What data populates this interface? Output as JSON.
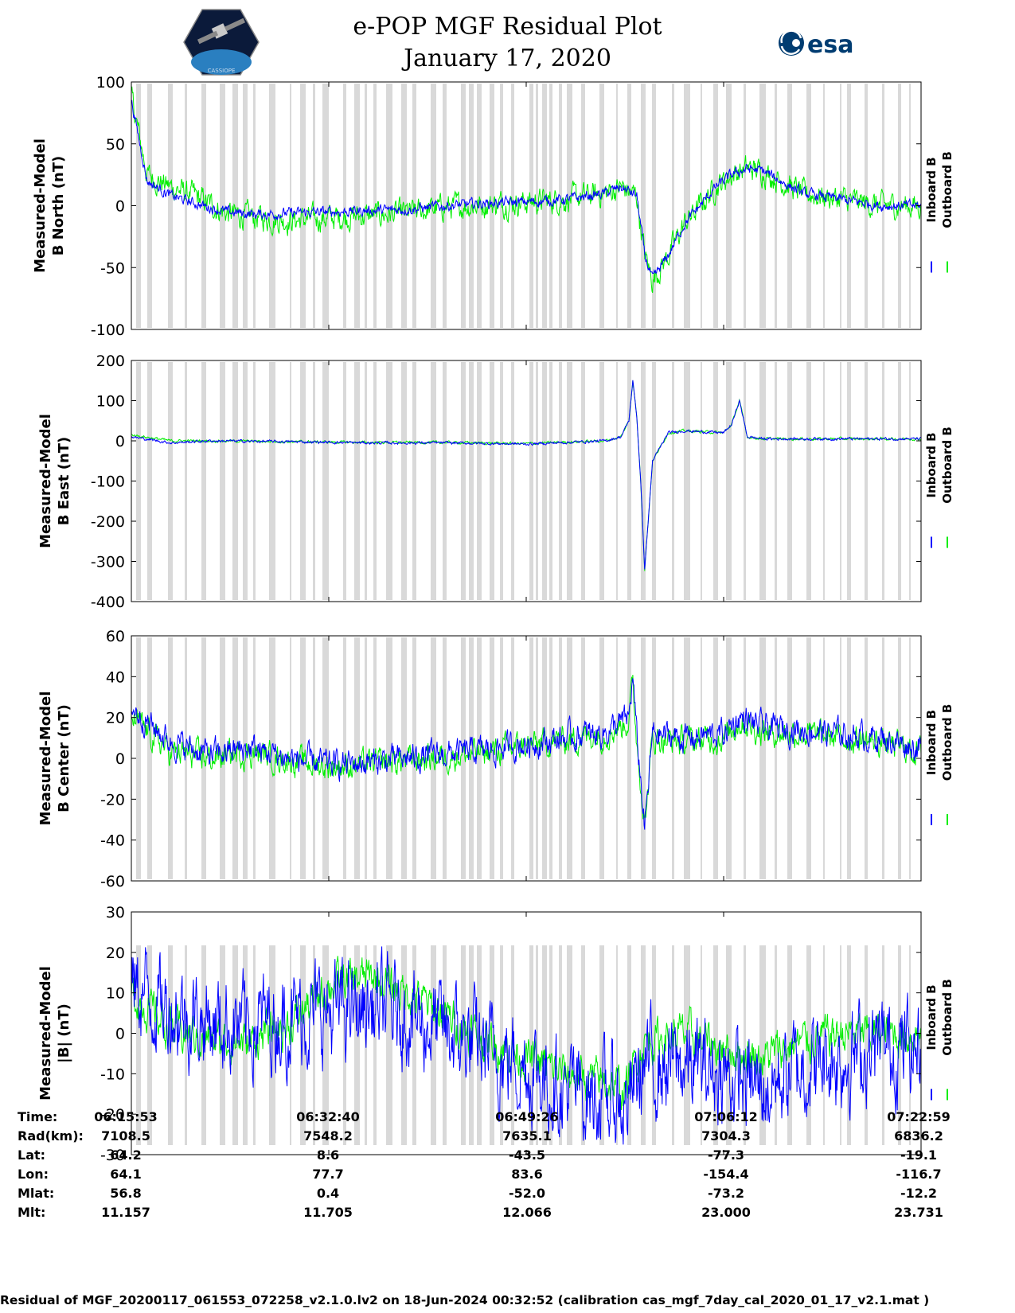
{
  "header": {
    "title_line1": "e-POP MGF Residual Plot",
    "title_line2": "January 17, 2020",
    "logo_left_text": "CASSIOPE",
    "logo_right_text": "esa"
  },
  "colors": {
    "inboard": "#0000ff",
    "outboard": "#00ee00",
    "gap": "#d9d9d9"
  },
  "legend": {
    "inboard": "Inboard B",
    "outboard": "Outboard B"
  },
  "chart_data": [
    {
      "type": "line",
      "ylabel_line1": "Measured-Model",
      "ylabel_line2": "B North (nT)",
      "ylim": [
        -100,
        100
      ],
      "yticks": [
        "100",
        "50",
        "0",
        "-50",
        "-100"
      ],
      "x": [
        0,
        0.02,
        0.05,
        0.08,
        0.12,
        0.16,
        0.2,
        0.25,
        0.3,
        0.35,
        0.4,
        0.45,
        0.5,
        0.55,
        0.6,
        0.62,
        0.64,
        0.65,
        0.66,
        0.68,
        0.7,
        0.72,
        0.74,
        0.76,
        0.78,
        0.8,
        0.85,
        0.9,
        0.95,
        1.0
      ],
      "series": [
        {
          "name": "Inboard B",
          "values": [
            85,
            20,
            8,
            2,
            -5,
            -7,
            -6,
            -5,
            -4,
            -3,
            0,
            2,
            3,
            5,
            10,
            15,
            8,
            -40,
            -60,
            -40,
            -15,
            0,
            15,
            25,
            30,
            28,
            10,
            5,
            0,
            0
          ]
        },
        {
          "name": "Outboard B",
          "values": [
            88,
            25,
            15,
            8,
            -6,
            -10,
            -12,
            -10,
            -8,
            -6,
            -1,
            1,
            3,
            5,
            10,
            15,
            8,
            -40,
            -60,
            -40,
            -15,
            0,
            15,
            25,
            30,
            28,
            10,
            5,
            0,
            0
          ]
        }
      ],
      "noise": [
        5,
        12
      ]
    },
    {
      "type": "line",
      "ylabel_line1": "Measured-Model",
      "ylabel_line2": "B East (nT)",
      "ylim": [
        -400,
        200
      ],
      "yticks": [
        "200",
        "100",
        "0",
        "-100",
        "-200",
        "-300",
        "-400"
      ],
      "x": [
        0,
        0.05,
        0.1,
        0.2,
        0.3,
        0.4,
        0.5,
        0.55,
        0.6,
        0.62,
        0.63,
        0.635,
        0.64,
        0.645,
        0.65,
        0.66,
        0.68,
        0.7,
        0.75,
        0.76,
        0.77,
        0.78,
        0.8,
        0.9,
        1.0
      ],
      "series": [
        {
          "name": "Inboard B",
          "values": [
            10,
            -5,
            0,
            -2,
            -5,
            -5,
            -8,
            -4,
            0,
            10,
            50,
            150,
            60,
            -100,
            -320,
            -50,
            20,
            25,
            20,
            40,
            100,
            10,
            5,
            5,
            5
          ]
        },
        {
          "name": "Outboard B",
          "values": [
            15,
            0,
            0,
            -2,
            -4,
            -4,
            -7,
            -3,
            0,
            10,
            50,
            150,
            60,
            -100,
            -320,
            -50,
            20,
            25,
            20,
            40,
            100,
            10,
            5,
            5,
            5
          ]
        }
      ],
      "noise": [
        4,
        4
      ]
    },
    {
      "type": "line",
      "ylabel_line1": "Measured-Model",
      "ylabel_line2": "B Center (nT)",
      "ylim": [
        -60,
        60
      ],
      "yticks": [
        "60",
        "40",
        "20",
        "0",
        "-20",
        "-40",
        "-60"
      ],
      "x": [
        0,
        0.05,
        0.1,
        0.15,
        0.2,
        0.25,
        0.3,
        0.35,
        0.4,
        0.45,
        0.5,
        0.55,
        0.6,
        0.62,
        0.63,
        0.635,
        0.64,
        0.645,
        0.65,
        0.66,
        0.7,
        0.75,
        0.77,
        0.8,
        0.85,
        0.9,
        0.95,
        1.0
      ],
      "series": [
        {
          "name": "Inboard B",
          "values": [
            25,
            8,
            2,
            5,
            0,
            -3,
            -2,
            0,
            2,
            4,
            7,
            10,
            13,
            17,
            20,
            40,
            10,
            -10,
            -35,
            12,
            10,
            12,
            20,
            15,
            14,
            12,
            10,
            5
          ]
        },
        {
          "name": "Outboard B",
          "values": [
            20,
            3,
            0,
            3,
            -1,
            -4,
            -3,
            -1,
            1,
            3,
            6,
            9,
            12,
            16,
            19,
            38,
            8,
            -10,
            -33,
            10,
            8,
            10,
            18,
            13,
            12,
            10,
            8,
            3
          ]
        }
      ],
      "noise": [
        8,
        8
      ]
    },
    {
      "type": "line",
      "ylabel_line1": "Measured-Model",
      "ylabel_line2": "|B| (nT)",
      "ylim": [
        -30,
        30
      ],
      "yticks": [
        "30",
        "20",
        "10",
        "0",
        "-10",
        "-20",
        "-30"
      ],
      "x": [
        0,
        0.05,
        0.1,
        0.15,
        0.2,
        0.25,
        0.3,
        0.35,
        0.4,
        0.45,
        0.5,
        0.55,
        0.6,
        0.625,
        0.65,
        0.7,
        0.75,
        0.8,
        0.85,
        0.9,
        0.95,
        1.0
      ],
      "series": [
        {
          "name": "Inboard B",
          "values": [
            12,
            6,
            3,
            2,
            4,
            5,
            6,
            5,
            0,
            -4,
            -8,
            -14,
            -16,
            -18,
            -8,
            -8,
            -10,
            -14,
            -8,
            -6,
            -4,
            -3
          ]
        },
        {
          "name": "Outboard B",
          "values": [
            10,
            1,
            -2,
            -2,
            2,
            12,
            14,
            10,
            4,
            -2,
            -6,
            -10,
            -12,
            -14,
            -2,
            0,
            -4,
            -6,
            -2,
            0,
            0,
            0
          ]
        }
      ],
      "noise": [
        14,
        6
      ]
    }
  ],
  "info_table": {
    "labels": [
      "Time:",
      "Rad(km):",
      "Lat:",
      "Lon:",
      "Mlat:",
      "Mlt:"
    ],
    "columns": [
      {
        "time": "06:15:53",
        "rad": "7108.5",
        "lat": "64.2",
        "lon": "64.1",
        "mlat": "56.8",
        "mlt": "11.157"
      },
      {
        "time": "06:32:40",
        "rad": "7548.2",
        "lat": "8.6",
        "lon": "77.7",
        "mlat": "0.4",
        "mlt": "11.705"
      },
      {
        "time": "06:49:26",
        "rad": "7635.1",
        "lat": "-43.5",
        "lon": "83.6",
        "mlat": "-52.0",
        "mlt": "12.066"
      },
      {
        "time": "07:06:12",
        "rad": "7304.3",
        "lat": "-77.3",
        "lon": "-154.4",
        "mlat": "-73.2",
        "mlt": "23.000"
      },
      {
        "time": "07:22:59",
        "rad": "6836.2",
        "lat": "-19.1",
        "lon": "-116.7",
        "mlat": "-12.2",
        "mlt": "23.731"
      }
    ]
  },
  "footer": "Residual of MGF_20200117_061553_072258_v2.1.0.lv2 on 18-Jun-2024 00:32:52 (calibration cas_mgf_7day_cal_2020_01_17_v2.1.mat )"
}
